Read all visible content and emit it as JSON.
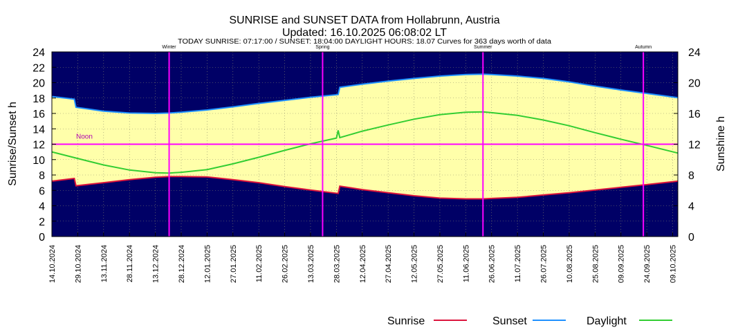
{
  "chart_data": {
    "type": "area",
    "title": "SUNRISE and SUNSET DATA from Hollabrunn, Austria",
    "subtitle": "Updated: 16.10.2025 06:08:02 LT",
    "info_line": "TODAY SUNRISE: 07:17:00 / SUNSET: 18:04:00  DAYLIGHT HOURS: 18.07     Curves for 363 days worth of data",
    "ylabel_left": "Sunrise/Sunset h",
    "ylabel_right": "Sunshine h",
    "ylim": [
      0,
      24
    ],
    "y_ticks_left": [
      "0",
      "2",
      "4",
      "6",
      "8",
      "10",
      "12",
      "14",
      "16",
      "18",
      "20",
      "22",
      "24"
    ],
    "y_ticks_right": [
      "0",
      "4",
      "8",
      "12",
      "16",
      "20",
      "24"
    ],
    "x_range": [
      "2024-10-14",
      "2025-10-12"
    ],
    "x_ticks": [
      "14.10.2024",
      "29.10.2024",
      "13.11.2024",
      "28.11.2024",
      "13.12.2024",
      "28.12.2024",
      "12.01.2025",
      "27.01.2025",
      "11.02.2025",
      "26.02.2025",
      "13.03.2025",
      "28.03.2025",
      "12.04.2025",
      "27.04.2025",
      "12.05.2025",
      "27.05.2025",
      "11.06.2025",
      "26.06.2025",
      "11.07.2025",
      "26.07.2025",
      "10.08.2025",
      "25.08.2025",
      "09.09.2025",
      "24.09.2025",
      "09.10.2025"
    ],
    "season_markers": [
      {
        "label": "Winter",
        "date": "2024-12-21"
      },
      {
        "label": "Spring",
        "date": "2025-03-20"
      },
      {
        "label": "Summer",
        "date": "2025-06-21"
      },
      {
        "label": "Autumn",
        "date": "2025-09-22"
      }
    ],
    "noon_line": {
      "label": "Noon",
      "value": 12
    },
    "colors": {
      "background": "#000066",
      "fill": "#ffffaa",
      "sunrise": "#dc143c",
      "sunset": "#1e90ff",
      "daylight": "#32cd32",
      "markers": "#ff00ff"
    },
    "series": [
      {
        "name": "Sunrise",
        "x": [
          "2024-10-14",
          "2024-10-27",
          "2024-10-28",
          "2024-11-13",
          "2024-11-28",
          "2024-12-13",
          "2024-12-21",
          "2024-12-28",
          "2025-01-12",
          "2025-01-27",
          "2025-02-11",
          "2025-02-26",
          "2025-03-13",
          "2025-03-29",
          "2025-03-30",
          "2025-04-12",
          "2025-04-27",
          "2025-05-12",
          "2025-05-27",
          "2025-06-11",
          "2025-06-21",
          "2025-06-26",
          "2025-07-11",
          "2025-07-26",
          "2025-08-10",
          "2025-08-25",
          "2025-09-09",
          "2025-09-24",
          "2025-10-12"
        ],
        "values": [
          7.2,
          7.55,
          6.6,
          7.0,
          7.4,
          7.7,
          7.8,
          7.8,
          7.75,
          7.4,
          7.0,
          6.5,
          6.05,
          5.6,
          6.55,
          6.1,
          5.7,
          5.3,
          5.0,
          4.9,
          4.9,
          4.95,
          5.1,
          5.4,
          5.7,
          6.05,
          6.4,
          6.75,
          7.2
        ]
      },
      {
        "name": "Sunset",
        "x": [
          "2024-10-14",
          "2024-10-27",
          "2024-10-28",
          "2024-11-13",
          "2024-11-28",
          "2024-12-13",
          "2024-12-21",
          "2024-12-28",
          "2025-01-12",
          "2025-01-27",
          "2025-02-11",
          "2025-02-26",
          "2025-03-13",
          "2025-03-29",
          "2025-03-30",
          "2025-04-12",
          "2025-04-27",
          "2025-05-12",
          "2025-05-27",
          "2025-06-11",
          "2025-06-21",
          "2025-06-26",
          "2025-07-11",
          "2025-07-26",
          "2025-08-10",
          "2025-08-25",
          "2025-09-09",
          "2025-09-24",
          "2025-10-12"
        ],
        "values": [
          18.2,
          17.85,
          16.8,
          16.3,
          16.05,
          16.0,
          16.05,
          16.15,
          16.45,
          16.85,
          17.3,
          17.7,
          18.1,
          18.45,
          19.4,
          19.8,
          20.2,
          20.55,
          20.85,
          21.05,
          21.1,
          21.05,
          20.85,
          20.55,
          20.1,
          19.55,
          19.05,
          18.6,
          18.05
        ]
      },
      {
        "name": "Daylight",
        "x": [
          "2024-10-14",
          "2024-10-28",
          "2024-11-13",
          "2024-11-28",
          "2024-12-13",
          "2024-12-21",
          "2024-12-28",
          "2025-01-12",
          "2025-01-27",
          "2025-02-11",
          "2025-02-26",
          "2025-03-13",
          "2025-03-28",
          "2025-03-29",
          "2025-03-30",
          "2025-04-12",
          "2025-04-27",
          "2025-05-12",
          "2025-05-27",
          "2025-06-11",
          "2025-06-21",
          "2025-06-26",
          "2025-07-11",
          "2025-07-26",
          "2025-08-10",
          "2025-08-25",
          "2025-09-09",
          "2025-09-24",
          "2025-10-12"
        ],
        "values": [
          11.0,
          10.2,
          9.3,
          8.65,
          8.3,
          8.25,
          8.35,
          8.7,
          9.45,
          10.3,
          11.2,
          12.05,
          12.8,
          13.8,
          12.85,
          13.7,
          14.5,
          15.25,
          15.85,
          16.15,
          16.2,
          16.1,
          15.75,
          15.15,
          14.4,
          13.5,
          12.65,
          11.85,
          10.85
        ]
      }
    ],
    "legend": [
      {
        "label": "Sunrise",
        "color": "#dc143c"
      },
      {
        "label": "Sunset",
        "color": "#1e90ff"
      },
      {
        "label": "Daylight",
        "color": "#32cd32"
      }
    ],
    "legend_position": "bottom-right",
    "grid": true
  }
}
